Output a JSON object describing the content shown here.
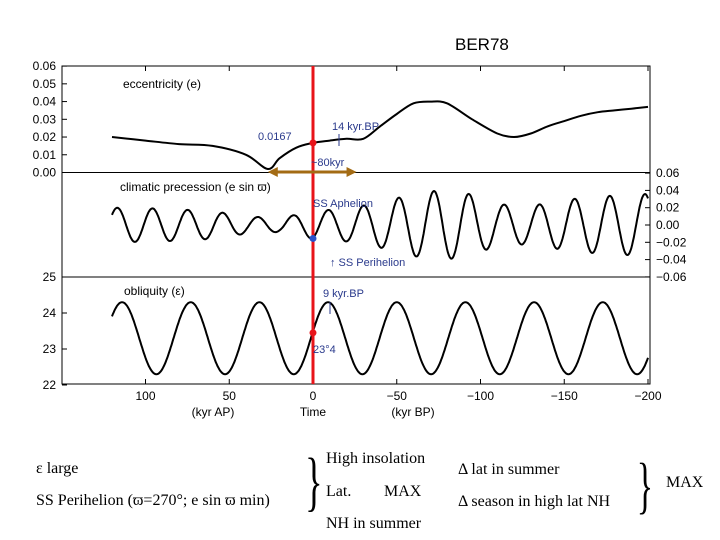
{
  "chart_data": {
    "type": "line",
    "title": "BER78",
    "x_axis": {
      "label": "Time",
      "sublabel_left": "(kyr AP)",
      "sublabel_right": "(kyr BP)",
      "xlim": [
        200,
        -200
      ],
      "ticks": [
        100,
        50,
        0,
        -50,
        -100,
        -150,
        -200
      ],
      "tick_labels": [
        "100",
        "50",
        "0",
        "−50",
        "−100",
        "−150",
        "−200"
      ]
    },
    "panels": [
      {
        "name": "eccentricity (e)",
        "axis_side": "left",
        "ylim": [
          0,
          0.06
        ],
        "ticks": [
          "0.00",
          "0.01",
          "0.02",
          "0.03",
          "0.04",
          "0.05",
          "0.06"
        ],
        "tick_values": [
          0,
          0.01,
          0.02,
          0.03,
          0.04,
          0.05,
          0.06
        ],
        "x": [
          120,
          100,
          80,
          60,
          40,
          27,
          20,
          10,
          0,
          -10,
          -20,
          -30,
          -40,
          -50,
          -60,
          -70,
          -80,
          -95,
          -110,
          -120,
          -130,
          -140,
          -150,
          -160,
          -170,
          -180,
          -190,
          -200
        ],
        "y": [
          0.02,
          0.018,
          0.016,
          0.015,
          0.01,
          0.002,
          0.008,
          0.014,
          0.0167,
          0.018,
          0.019,
          0.019,
          0.026,
          0.033,
          0.039,
          0.04,
          0.039,
          0.03,
          0.022,
          0.02,
          0.022,
          0.026,
          0.029,
          0.032,
          0.034,
          0.035,
          0.036,
          0.037
        ]
      },
      {
        "name": "climatic precession (e sin ϖ)",
        "axis_side": "right",
        "ylim": [
          -0.06,
          0.06
        ],
        "ticks": [
          "0.06",
          "0.04",
          "0.02",
          "0.00",
          "−0.02",
          "−0.04",
          "−0.06"
        ],
        "tick_values": [
          0.06,
          0.04,
          0.02,
          0,
          -0.02,
          -0.04,
          -0.06
        ],
        "period_kyr": 21,
        "amplitude_segments": {
          "x": [
            120,
            90,
            60,
            40,
            20,
            0,
            -20,
            -40,
            -60,
            -75,
            -90,
            -110,
            -130,
            -150,
            -170,
            -200
          ],
          "amp": [
            0.02,
            0.019,
            0.016,
            0.01,
            0.008,
            0.016,
            0.019,
            0.026,
            0.036,
            0.04,
            0.038,
            0.024,
            0.022,
            0.029,
            0.033,
            0.036
          ]
        },
        "phase_ref": {
          "x": 0,
          "value": -0.0167
        }
      },
      {
        "name": "obliquity (ε)",
        "axis_side": "left",
        "ylim": [
          22,
          25
        ],
        "ticks": [
          "22",
          "23",
          "24",
          "25"
        ],
        "tick_values": [
          22,
          23,
          24,
          25
        ],
        "period_kyr": 41,
        "mean": 23.3,
        "amplitude": 1.0,
        "phase_ref": {
          "x": -9,
          "value": 24.25
        }
      }
    ],
    "annotations": [
      {
        "text": "0.0167",
        "x": 0
      },
      {
        "text": "14 kyr.BP",
        "x": -14
      },
      {
        "text": "~80kyr",
        "x": 25
      },
      {
        "text": "SS Aphelion",
        "x": 0
      },
      {
        "text": "↑ SS Perihelion",
        "x": -11
      },
      {
        "text": "9 kyr.BP",
        "x": -9
      },
      {
        "text": "23°4",
        "x": 0
      }
    ],
    "colors": {
      "curve": "#000000",
      "present_line": "#e8141a",
      "present_marker": "#e8141a",
      "aphelion_marker": "#2a50c8",
      "range_arrow": "#a36b14",
      "annotation_text": "#2a3a8c"
    }
  },
  "bottom": {
    "left_line1": "ε large",
    "left_line2": "SS Perihelion (ϖ=270°; e sin ϖ min)",
    "mid_line1": "High insolation",
    "mid_line2a": "Lat.",
    "mid_line2b": "MAX",
    "mid_line3": "NH in summer",
    "right_line1": "Δ lat in summer",
    "right_line2": "Δ season in high lat NH",
    "far_right": "MAX"
  }
}
